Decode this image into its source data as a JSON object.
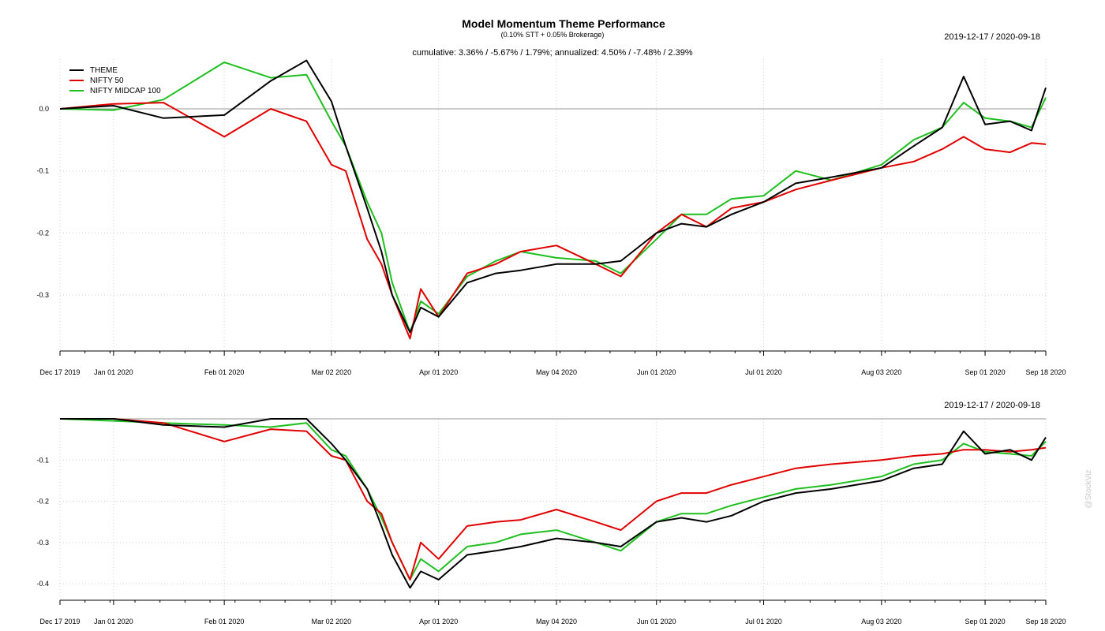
{
  "header": {
    "title": "Model Momentum Theme Performance",
    "subtitle": "(0.10% STT + 0.05% Brokerage)",
    "stats": "cumulative: 3.36% / -5.67% / 1.79%; annualized: 4.50% / -7.48% / 2.39%",
    "watermark": "@StockViz"
  },
  "colors": {
    "THEME": "#000000",
    "NIFTY 50": "#e00000",
    "NIFTY MIDCAP 100": "#1fbf1f"
  },
  "chart_data": [
    {
      "type": "line",
      "date_range_label": "2019-12-17 / 2020-09-18",
      "x_ticks": [
        "Dec 17 2019",
        "Jan 01 2020",
        "Feb 01 2020",
        "Mar 02 2020",
        "Apr 01 2020",
        "May 04 2020",
        "Jun 01 2020",
        "Jul 01 2020",
        "Aug 03 2020",
        "Sep 01 2020",
        "Sep 18 2020"
      ],
      "y_ticks": [
        "0.0",
        "-0.1",
        "-0.2",
        "-0.3"
      ],
      "ylim": [
        -0.39,
        0.08
      ],
      "legend": "top-left",
      "grid": true,
      "x": [
        "2019-12-17",
        "2020-01-01",
        "2020-01-15",
        "2020-02-01",
        "2020-02-14",
        "2020-02-24",
        "2020-03-02",
        "2020-03-06",
        "2020-03-12",
        "2020-03-16",
        "2020-03-19",
        "2020-03-24",
        "2020-03-27",
        "2020-04-01",
        "2020-04-09",
        "2020-04-17",
        "2020-04-24",
        "2020-05-04",
        "2020-05-15",
        "2020-05-22",
        "2020-06-01",
        "2020-06-08",
        "2020-06-15",
        "2020-06-22",
        "2020-07-01",
        "2020-07-10",
        "2020-07-20",
        "2020-08-03",
        "2020-08-12",
        "2020-08-20",
        "2020-08-26",
        "2020-09-01",
        "2020-09-08",
        "2020-09-14",
        "2020-09-18"
      ],
      "series": [
        {
          "name": "THEME",
          "values": [
            0.0,
            0.005,
            -0.015,
            -0.01,
            0.045,
            0.078,
            0.012,
            -0.06,
            -0.16,
            -0.23,
            -0.3,
            -0.36,
            -0.32,
            -0.335,
            -0.28,
            -0.265,
            -0.26,
            -0.25,
            -0.25,
            -0.245,
            -0.2,
            -0.185,
            -0.19,
            -0.17,
            -0.15,
            -0.12,
            -0.11,
            -0.095,
            -0.06,
            -0.03,
            0.052,
            -0.025,
            -0.02,
            -0.035,
            0.034
          ]
        },
        {
          "name": "NIFTY 50",
          "values": [
            0.0,
            0.008,
            0.01,
            -0.045,
            -0.0,
            -0.02,
            -0.09,
            -0.1,
            -0.21,
            -0.25,
            -0.3,
            -0.37,
            -0.29,
            -0.335,
            -0.265,
            -0.25,
            -0.23,
            -0.22,
            -0.25,
            -0.27,
            -0.2,
            -0.17,
            -0.19,
            -0.16,
            -0.15,
            -0.13,
            -0.115,
            -0.095,
            -0.085,
            -0.065,
            -0.045,
            -0.065,
            -0.07,
            -0.055,
            -0.057
          ]
        },
        {
          "name": "NIFTY MIDCAP 100",
          "values": [
            0.0,
            -0.002,
            0.015,
            0.075,
            0.05,
            0.055,
            -0.02,
            -0.06,
            -0.15,
            -0.2,
            -0.28,
            -0.36,
            -0.31,
            -0.33,
            -0.27,
            -0.245,
            -0.23,
            -0.24,
            -0.245,
            -0.265,
            -0.21,
            -0.17,
            -0.17,
            -0.145,
            -0.14,
            -0.1,
            -0.115,
            -0.09,
            -0.05,
            -0.03,
            0.01,
            -0.015,
            -0.02,
            -0.03,
            0.018
          ]
        }
      ]
    },
    {
      "type": "line",
      "date_range_label": "2019-12-17 / 2020-09-18",
      "x_ticks": [
        "Dec 17 2019",
        "Jan 01 2020",
        "Feb 01 2020",
        "Mar 02 2020",
        "Apr 01 2020",
        "May 04 2020",
        "Jun 01 2020",
        "Jul 01 2020",
        "Aug 03 2020",
        "Sep 01 2020",
        "Sep 18 2020"
      ],
      "y_ticks": [
        "-0.1",
        "-0.2",
        "-0.3",
        "-0.4"
      ],
      "ylim": [
        -0.44,
        0.0
      ],
      "grid": true,
      "x": [
        "2019-12-17",
        "2020-01-01",
        "2020-01-15",
        "2020-02-01",
        "2020-02-14",
        "2020-02-24",
        "2020-03-02",
        "2020-03-06",
        "2020-03-12",
        "2020-03-16",
        "2020-03-19",
        "2020-03-24",
        "2020-03-27",
        "2020-04-01",
        "2020-04-09",
        "2020-04-17",
        "2020-04-24",
        "2020-05-04",
        "2020-05-15",
        "2020-05-22",
        "2020-06-01",
        "2020-06-08",
        "2020-06-15",
        "2020-06-22",
        "2020-07-01",
        "2020-07-10",
        "2020-07-20",
        "2020-08-03",
        "2020-08-12",
        "2020-08-20",
        "2020-08-26",
        "2020-09-01",
        "2020-09-08",
        "2020-09-14",
        "2020-09-18"
      ],
      "series": [
        {
          "name": "THEME",
          "values": [
            0.0,
            0.0,
            -0.015,
            -0.02,
            0.0,
            0.0,
            -0.06,
            -0.1,
            -0.17,
            -0.26,
            -0.33,
            -0.41,
            -0.37,
            -0.39,
            -0.33,
            -0.32,
            -0.31,
            -0.29,
            -0.3,
            -0.31,
            -0.25,
            -0.24,
            -0.25,
            -0.235,
            -0.2,
            -0.18,
            -0.17,
            -0.15,
            -0.12,
            -0.11,
            -0.03,
            -0.085,
            -0.075,
            -0.1,
            -0.045
          ]
        },
        {
          "name": "NIFTY 50",
          "values": [
            0.0,
            0.0,
            -0.01,
            -0.055,
            -0.025,
            -0.03,
            -0.09,
            -0.1,
            -0.2,
            -0.23,
            -0.3,
            -0.39,
            -0.3,
            -0.34,
            -0.26,
            -0.25,
            -0.245,
            -0.22,
            -0.25,
            -0.27,
            -0.2,
            -0.18,
            -0.18,
            -0.16,
            -0.14,
            -0.12,
            -0.11,
            -0.1,
            -0.09,
            -0.085,
            -0.075,
            -0.075,
            -0.08,
            -0.075,
            -0.07
          ]
        },
        {
          "name": "NIFTY MIDCAP 100",
          "values": [
            0.0,
            -0.005,
            -0.01,
            -0.015,
            -0.02,
            -0.01,
            -0.075,
            -0.09,
            -0.17,
            -0.24,
            -0.3,
            -0.39,
            -0.34,
            -0.37,
            -0.31,
            -0.3,
            -0.28,
            -0.27,
            -0.3,
            -0.32,
            -0.25,
            -0.23,
            -0.23,
            -0.21,
            -0.19,
            -0.17,
            -0.16,
            -0.14,
            -0.11,
            -0.1,
            -0.06,
            -0.08,
            -0.085,
            -0.09,
            -0.055
          ]
        }
      ]
    }
  ]
}
